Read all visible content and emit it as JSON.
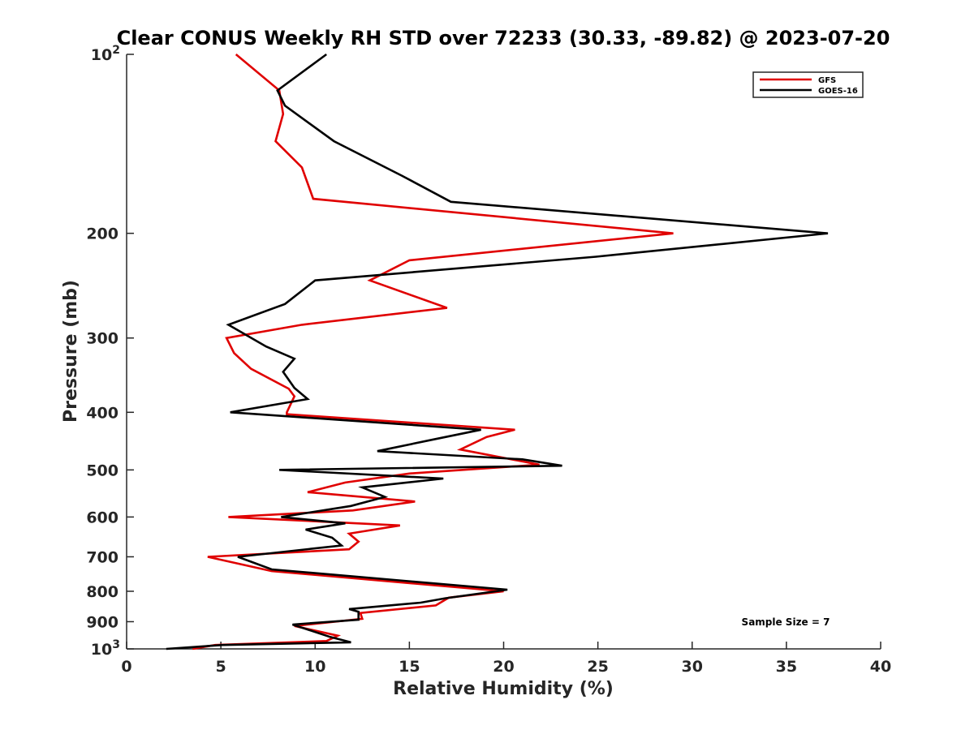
{
  "chart_data": {
    "type": "line",
    "title": "Clear CONUS Weekly RH STD over 72233 (30.33, -89.82) @ 2023-07-20",
    "xlabel": "Relative Humidity (%)",
    "ylabel": "Pressure (mb)",
    "xlim": [
      0,
      40
    ],
    "ylim": [
      100,
      1000
    ],
    "y_scale": "log",
    "y_reversed": true,
    "x_ticks": [
      "0",
      "5",
      "10",
      "15",
      "20",
      "25",
      "30",
      "35",
      "40"
    ],
    "y_ticks": [
      {
        "value": 100,
        "label": "10",
        "sup": "2"
      },
      {
        "value": 200,
        "label": "200",
        "sup": ""
      },
      {
        "value": 300,
        "label": "300",
        "sup": ""
      },
      {
        "value": 400,
        "label": "400",
        "sup": ""
      },
      {
        "value": 500,
        "label": "500",
        "sup": ""
      },
      {
        "value": 600,
        "label": "600",
        "sup": ""
      },
      {
        "value": 700,
        "label": "700",
        "sup": ""
      },
      {
        "value": 800,
        "label": "800",
        "sup": ""
      },
      {
        "value": 900,
        "label": "900",
        "sup": ""
      },
      {
        "value": 1000,
        "label": "10",
        "sup": "3"
      }
    ],
    "grid": false,
    "legend_position": "top-right",
    "annotation": "Sample Size = 7",
    "series": [
      {
        "name": "GFS",
        "color": "#e00000",
        "points": [
          [
            5.8,
            100
          ],
          [
            8.1,
            115
          ],
          [
            8.3,
            126
          ],
          [
            7.9,
            140
          ],
          [
            9.3,
            155
          ],
          [
            9.9,
            175
          ],
          [
            29.0,
            200
          ],
          [
            15.0,
            222
          ],
          [
            12.9,
            240
          ],
          [
            17.0,
            267
          ],
          [
            9.3,
            285
          ],
          [
            5.3,
            300
          ],
          [
            5.7,
            318
          ],
          [
            6.6,
            338
          ],
          [
            8.6,
            365
          ],
          [
            8.9,
            376
          ],
          [
            8.5,
            400
          ],
          [
            8.5,
            403
          ],
          [
            20.6,
            428
          ],
          [
            19.1,
            440
          ],
          [
            17.7,
            462
          ],
          [
            21.9,
            490
          ],
          [
            15.0,
            507
          ],
          [
            11.6,
            525
          ],
          [
            9.6,
            545
          ],
          [
            15.3,
            565
          ],
          [
            12.0,
            585
          ],
          [
            5.4,
            600
          ],
          [
            14.5,
            620
          ],
          [
            11.8,
            640
          ],
          [
            12.3,
            660
          ],
          [
            11.8,
            680
          ],
          [
            4.3,
            700
          ],
          [
            7.7,
            740
          ],
          [
            20.0,
            800
          ],
          [
            17.1,
            820
          ],
          [
            16.4,
            845
          ],
          [
            12.4,
            870
          ],
          [
            12.5,
            890
          ],
          [
            8.9,
            915
          ],
          [
            11.2,
            950
          ],
          [
            10.6,
            970
          ],
          [
            4.7,
            985
          ],
          [
            3.5,
            1000
          ]
        ]
      },
      {
        "name": "GOES-16",
        "color": "#000000",
        "points": [
          [
            10.6,
            100
          ],
          [
            8.0,
            115
          ],
          [
            8.4,
            122
          ],
          [
            11.0,
            140
          ],
          [
            14.6,
            160
          ],
          [
            17.2,
            177
          ],
          [
            37.2,
            200
          ],
          [
            24.9,
            219
          ],
          [
            10.0,
            240
          ],
          [
            8.4,
            263
          ],
          [
            5.4,
            285
          ],
          [
            7.4,
            310
          ],
          [
            8.9,
            325
          ],
          [
            8.3,
            342
          ],
          [
            8.9,
            364
          ],
          [
            9.6,
            380
          ],
          [
            5.5,
            400
          ],
          [
            18.8,
            428
          ],
          [
            16.2,
            445
          ],
          [
            13.3,
            465
          ],
          [
            21.0,
            480
          ],
          [
            23.1,
            492
          ],
          [
            8.1,
            500
          ],
          [
            16.8,
            517
          ],
          [
            12.5,
            535
          ],
          [
            13.7,
            555
          ],
          [
            11.9,
            575
          ],
          [
            8.2,
            600
          ],
          [
            11.6,
            615
          ],
          [
            9.5,
            630
          ],
          [
            10.9,
            650
          ],
          [
            11.4,
            670
          ],
          [
            5.9,
            700
          ],
          [
            7.7,
            735
          ],
          [
            20.2,
            795
          ],
          [
            16.9,
            822
          ],
          [
            15.6,
            836
          ],
          [
            11.8,
            857
          ],
          [
            12.3,
            866
          ],
          [
            12.3,
            893
          ],
          [
            8.8,
            910
          ],
          [
            10.8,
            955
          ],
          [
            11.9,
            975
          ],
          [
            5.1,
            985
          ],
          [
            2.1,
            1000
          ]
        ]
      }
    ]
  }
}
